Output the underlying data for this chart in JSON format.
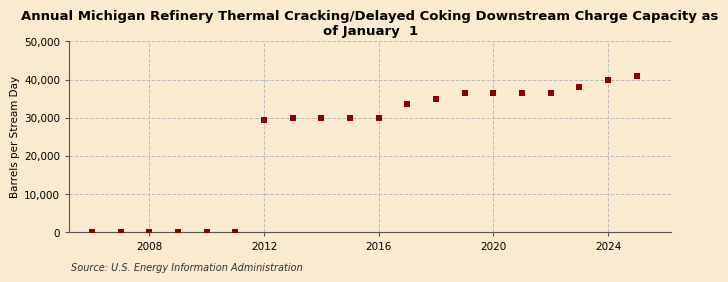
{
  "title": "Annual Michigan Refinery Thermal Cracking/Delayed Coking Downstream Charge Capacity as\nof January  1",
  "ylabel": "Barrels per Stream Day",
  "source": "Source: U.S. Energy Information Administration",
  "background_color": "#faebd0",
  "plot_bg_color": "#faebd0",
  "marker_color": "#8b0000",
  "years": [
    2006,
    2007,
    2008,
    2009,
    2010,
    2011,
    2012,
    2013,
    2014,
    2015,
    2016,
    2017,
    2018,
    2019,
    2020,
    2021,
    2022,
    2023,
    2024,
    2025
  ],
  "values": [
    0,
    0,
    0,
    0,
    0,
    0,
    29500,
    30000,
    30000,
    30000,
    30000,
    33500,
    35000,
    36500,
    36500,
    36500,
    36500,
    38000,
    40000,
    41000
  ],
  "ylim": [
    0,
    50000
  ],
  "yticks": [
    0,
    10000,
    20000,
    30000,
    40000,
    50000
  ],
  "xtick_years": [
    2008,
    2012,
    2016,
    2020,
    2024
  ],
  "grid_color": "#bbbbbb",
  "title_fontsize": 9.5,
  "ylabel_fontsize": 7.5,
  "source_fontsize": 7,
  "tick_fontsize": 7.5
}
